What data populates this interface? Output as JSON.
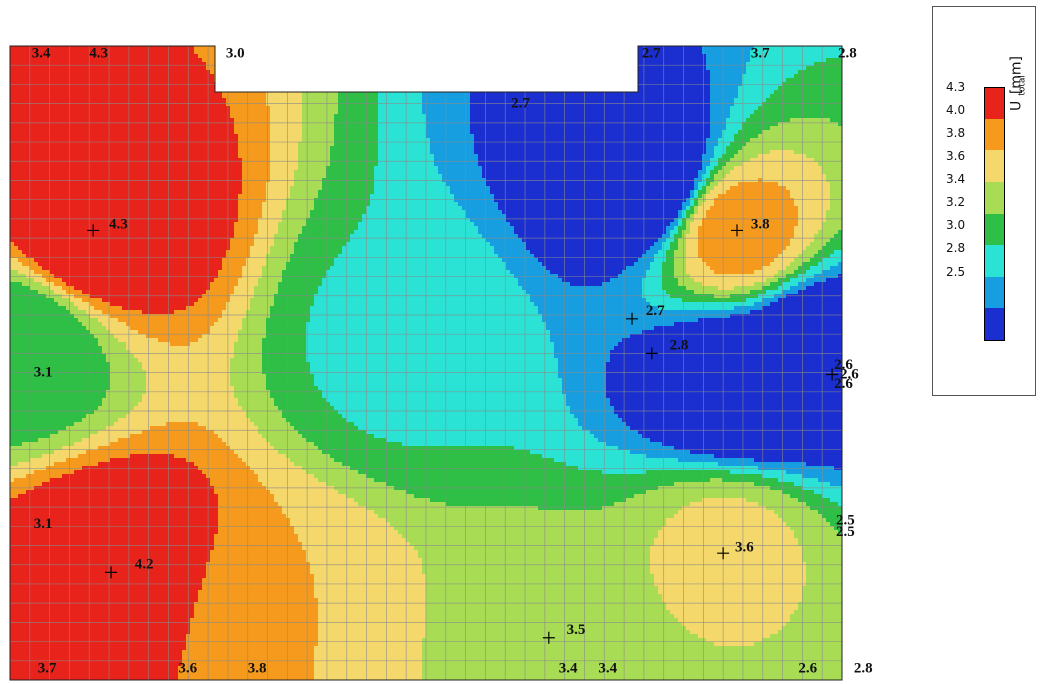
{
  "chart_data": {
    "type": "heatmap",
    "title": "",
    "legend": {
      "title_main": "U",
      "title_sub": "total",
      "title_unit": " [mm]",
      "placement": "right",
      "ticks": [
        "4.3",
        "4.0",
        "3.8",
        "3.6",
        "3.4",
        "3.2",
        "3.0",
        "2.8",
        "2.5"
      ],
      "levels": [
        2.5,
        2.8,
        3.0,
        3.2,
        3.4,
        3.6,
        3.8,
        4.0,
        4.3
      ],
      "colors": [
        "#1b2fd1",
        "#169ee0",
        "#2be3d5",
        "#2fbf46",
        "#a8dc55",
        "#f5d86c",
        "#f59a1d",
        "#e8231c"
      ]
    },
    "mesh": "quad grid, approx 42 x 33 cells",
    "domain": {
      "x": [
        0,
        42
      ],
      "y": [
        0,
        33
      ],
      "notch": {
        "x": [
          10.3,
          31.5
        ],
        "y": [
          30.4,
          33
        ]
      }
    },
    "peaks": [
      {
        "x": 4.2,
        "y": 23.4,
        "value": 4.3
      },
      {
        "x": 5.1,
        "y": 5.6,
        "value": 4.3
      },
      {
        "x": 36.7,
        "y": 23.4,
        "value": 3.9
      },
      {
        "x": 36.3,
        "y": 7.0,
        "value": 3.65
      },
      {
        "x": 13.5,
        "y": 3.2,
        "value": 3.8
      },
      {
        "x": 27.0,
        "y": 1.6,
        "value": 3.52
      },
      {
        "x": 32.0,
        "y": 26.0,
        "value": 2.4
      },
      {
        "x": 37.0,
        "y": 15.3,
        "value": 2.4
      },
      {
        "x": 40.5,
        "y": 17.0,
        "value": 2.5
      },
      {
        "x": 0.5,
        "y": 17.5,
        "value": 3.2
      },
      {
        "x": 20.0,
        "y": 17.5,
        "value": 3.15
      }
    ],
    "labels": [
      {
        "text": "3.4",
        "x": 1.1,
        "y": 32.4
      },
      {
        "text": "4.3",
        "x": 4.0,
        "y": 32.4
      },
      {
        "text": "3.0",
        "x": 10.9,
        "y": 32.4
      },
      {
        "text": "2.7",
        "x": 25.3,
        "y": 29.8
      },
      {
        "text": "2.7",
        "x": 31.9,
        "y": 32.4
      },
      {
        "text": "3.7",
        "x": 37.4,
        "y": 32.4
      },
      {
        "text": "2.8",
        "x": 41.8,
        "y": 32.4
      },
      {
        "text": "4.3",
        "x": 5.0,
        "y": 23.5
      },
      {
        "text": "3.8",
        "x": 37.4,
        "y": 23.5
      },
      {
        "text": "2.7",
        "x": 32.1,
        "y": 19.0
      },
      {
        "text": "2.8",
        "x": 33.3,
        "y": 17.2
      },
      {
        "text": "3.1",
        "x": 1.2,
        "y": 15.8
      },
      {
        "text": "2.6",
        "x": 41.6,
        "y": 16.2
      },
      {
        "text": "2.6",
        "x": 41.9,
        "y": 15.7
      },
      {
        "text": "2.6",
        "x": 41.6,
        "y": 15.2
      },
      {
        "text": "3.1",
        "x": 1.2,
        "y": 7.9
      },
      {
        "text": "2.5",
        "x": 41.7,
        "y": 8.1
      },
      {
        "text": "2.5",
        "x": 41.7,
        "y": 7.5
      },
      {
        "text": "4.2",
        "x": 6.3,
        "y": 5.8
      },
      {
        "text": "3.6",
        "x": 36.6,
        "y": 6.7
      },
      {
        "text": "3.5",
        "x": 28.1,
        "y": 2.4
      },
      {
        "text": "3.7",
        "x": 1.4,
        "y": 0.4
      },
      {
        "text": "3.6",
        "x": 8.5,
        "y": 0.4
      },
      {
        "text": "3.8",
        "x": 12.0,
        "y": 0.4
      },
      {
        "text": "3.4",
        "x": 27.7,
        "y": 0.4
      },
      {
        "text": "3.4",
        "x": 29.7,
        "y": 0.4
      },
      {
        "text": "2.6",
        "x": 39.8,
        "y": 0.4
      },
      {
        "text": "2.8",
        "x": 42.6,
        "y": 0.4
      }
    ],
    "markers": [
      {
        "x": 4.2,
        "y": 23.4
      },
      {
        "x": 36.7,
        "y": 23.4
      },
      {
        "x": 31.4,
        "y": 18.8
      },
      {
        "x": 32.4,
        "y": 17.0
      },
      {
        "x": 5.1,
        "y": 5.6
      },
      {
        "x": 36.0,
        "y": 6.6
      },
      {
        "x": 27.2,
        "y": 2.2
      },
      {
        "x": 41.5,
        "y": 15.9
      }
    ]
  }
}
